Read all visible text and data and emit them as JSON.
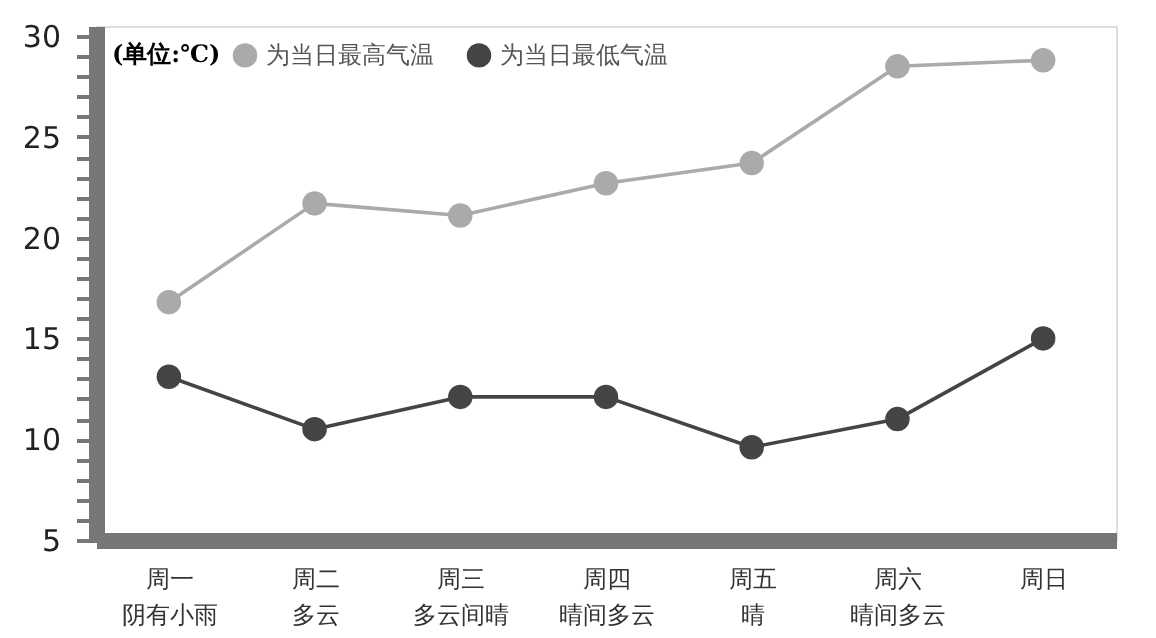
{
  "chart_data": {
    "type": "line",
    "categories": [
      "周一阴有小雨",
      "周二多云",
      "周三多云间晴",
      "周四晴间多云",
      "周五晴",
      "周六晴间多云",
      "周日"
    ],
    "legend_title": "(单位:℃)",
    "series": [
      {
        "name": "为当日最高气温",
        "color": "#aaaaaa",
        "values": [
          16.8,
          21.7,
          21.1,
          22.7,
          23.7,
          28.5,
          28.8
        ]
      },
      {
        "name": "为当日最低气温",
        "color": "#444444",
        "values": [
          13.1,
          10.5,
          12.1,
          12.1,
          9.6,
          11.0,
          15.0
        ]
      }
    ],
    "ylim": [
      5,
      30.5
    ],
    "yticks": [
      5,
      {
        "value": 6,
        "label": null
      },
      {
        "value": 7,
        "label": null
      },
      {
        "value": 8,
        "label": null
      },
      {
        "value": 9,
        "label": null
      },
      10,
      {
        "value": 11,
        "label": null
      },
      {
        "value": 12,
        "label": null
      },
      {
        "value": 13,
        "label": null
      },
      {
        "value": 14,
        "label": null
      },
      15,
      {
        "value": 16,
        "label": null
      },
      {
        "value": 17,
        "label": null
      },
      {
        "value": 18,
        "label": null
      },
      {
        "value": 19,
        "label": null
      },
      20,
      {
        "value": 21,
        "label": null
      },
      {
        "value": 22,
        "label": null
      },
      {
        "value": 23,
        "label": null
      },
      {
        "value": 24,
        "label": null
      },
      25,
      {
        "value": 26,
        "label": null
      },
      {
        "value": 27,
        "label": null
      },
      {
        "value": 28,
        "label": null
      },
      {
        "value": 29,
        "label": null
      },
      30
    ],
    "legend": "top left",
    "grid": false,
    "marker": "circle",
    "line_style": "solid"
  }
}
